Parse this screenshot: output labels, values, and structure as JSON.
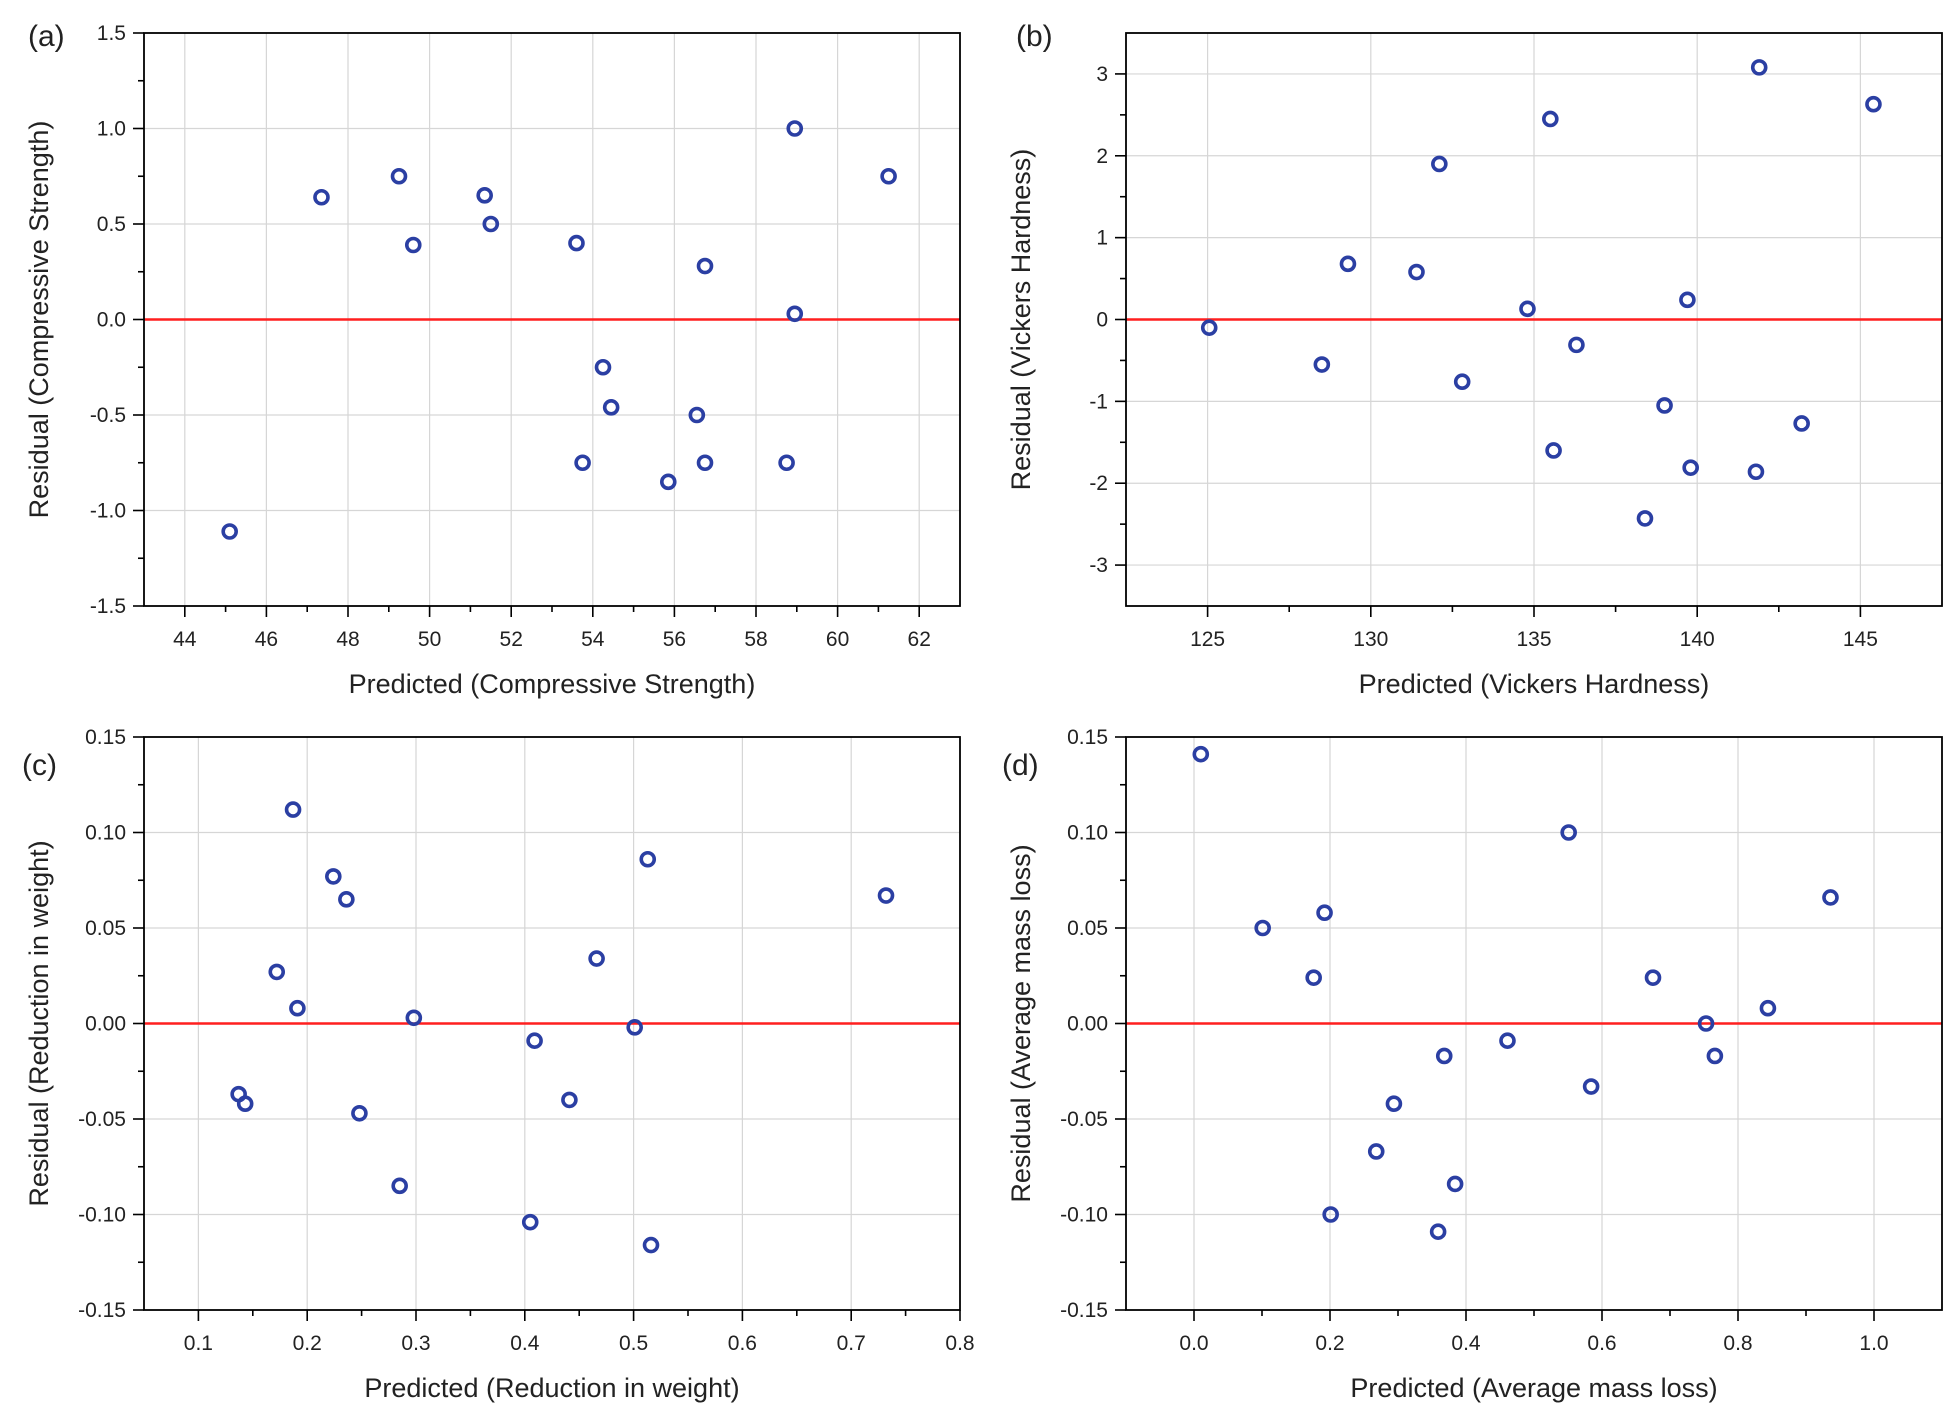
{
  "chart_data": [
    {
      "type": "scatter",
      "panel_label": "(a)",
      "xlabel": "Predicted (Compressive Strength)",
      "ylabel": "Residual (Compressive Strength)",
      "xlim": [
        43,
        63
      ],
      "ylim": [
        -1.5,
        1.5
      ],
      "xticks": [
        44,
        46,
        48,
        50,
        52,
        54,
        56,
        58,
        60,
        62
      ],
      "xtick_labels": [
        "44",
        "46",
        "48",
        "50",
        "52",
        "54",
        "56",
        "58",
        "60",
        "62"
      ],
      "yticks": [
        -1.5,
        -1.0,
        -0.5,
        0.0,
        0.5,
        1.0,
        1.5
      ],
      "ytick_labels": [
        "-1.5",
        "-1.0",
        "-0.5",
        "0.0",
        "0.5",
        "1.0",
        "1.5"
      ],
      "grid": true,
      "reference_line": {
        "y": 0,
        "color": "#ff1f1f"
      },
      "marker_color": "#2b3fa3",
      "x": [
        45.1,
        47.35,
        49.25,
        49.6,
        51.35,
        51.5,
        53.6,
        53.75,
        54.25,
        54.45,
        55.85,
        56.55,
        56.75,
        56.75,
        58.75,
        58.95,
        58.95,
        61.25
      ],
      "y": [
        -1.11,
        0.64,
        0.75,
        0.39,
        0.65,
        0.5,
        0.4,
        -0.75,
        -0.25,
        -0.46,
        -0.85,
        -0.5,
        0.28,
        -0.75,
        -0.75,
        1.0,
        0.03,
        0.75
      ]
    },
    {
      "type": "scatter",
      "panel_label": "(b)",
      "xlabel": "Predicted (Vickers Hardness)",
      "ylabel": "Residual (Vickers Hardness)",
      "xlim": [
        122.5,
        147.5
      ],
      "ylim": [
        -3.5,
        3.5
      ],
      "xticks": [
        125,
        130,
        135,
        140,
        145
      ],
      "xtick_labels": [
        "125",
        "130",
        "135",
        "140",
        "145"
      ],
      "yticks": [
        -3,
        -2,
        -1,
        0,
        1,
        2,
        3
      ],
      "ytick_labels": [
        "-3",
        "-2",
        "-1",
        "0",
        "1",
        "2",
        "3"
      ],
      "grid": true,
      "reference_line": {
        "y": 0,
        "color": "#ff1f1f"
      },
      "marker_color": "#2b3fa3",
      "x": [
        125.05,
        128.5,
        129.3,
        131.4,
        132.1,
        132.8,
        134.8,
        135.5,
        135.6,
        136.3,
        138.4,
        139.0,
        139.7,
        139.8,
        141.8,
        141.9,
        143.2,
        145.4
      ],
      "y": [
        -0.1,
        -0.55,
        0.68,
        0.58,
        1.9,
        -0.76,
        0.13,
        2.45,
        -1.6,
        -0.31,
        -2.43,
        -1.05,
        0.24,
        -1.81,
        -1.86,
        3.08,
        -1.27,
        2.63
      ]
    },
    {
      "type": "scatter",
      "panel_label": "(c)",
      "xlabel": "Predicted (Reduction in weight)",
      "ylabel": "Residual (Reduction in weight)",
      "xlim": [
        0.05,
        0.8
      ],
      "ylim": [
        -0.15,
        0.15
      ],
      "xticks": [
        0.1,
        0.2,
        0.3,
        0.4,
        0.5,
        0.6,
        0.7,
        0.8
      ],
      "xtick_labels": [
        "0.1",
        "0.2",
        "0.3",
        "0.4",
        "0.5",
        "0.6",
        "0.7",
        "0.8"
      ],
      "yticks": [
        -0.15,
        -0.1,
        -0.05,
        0.0,
        0.05,
        0.1,
        0.15
      ],
      "ytick_labels": [
        "-0.15",
        "-0.10",
        "-0.05",
        "0.00",
        "0.05",
        "0.10",
        "0.15"
      ],
      "grid": true,
      "reference_line": {
        "y": 0,
        "color": "#ff1f1f"
      },
      "marker_color": "#2b3fa3",
      "x": [
        0.137,
        0.143,
        0.172,
        0.187,
        0.191,
        0.224,
        0.236,
        0.248,
        0.285,
        0.298,
        0.405,
        0.409,
        0.441,
        0.466,
        0.501,
        0.513,
        0.516,
        0.732
      ],
      "y": [
        -0.037,
        -0.042,
        0.027,
        0.112,
        0.008,
        0.077,
        0.065,
        -0.047,
        -0.085,
        0.003,
        -0.104,
        -0.009,
        -0.04,
        0.034,
        -0.002,
        0.086,
        -0.116,
        0.067
      ]
    },
    {
      "type": "scatter",
      "panel_label": "(d)",
      "xlabel": "Predicted (Average mass loss)",
      "ylabel": "Residual (Average mass loss)",
      "xlim": [
        -0.1,
        1.1
      ],
      "ylim": [
        -0.15,
        0.15
      ],
      "xticks": [
        0.0,
        0.2,
        0.4,
        0.6,
        0.8,
        1.0
      ],
      "xtick_labels": [
        "0.0",
        "0.2",
        "0.4",
        "0.6",
        "0.8",
        "1.0"
      ],
      "yticks": [
        -0.15,
        -0.1,
        -0.05,
        0.0,
        0.05,
        0.1,
        0.15
      ],
      "ytick_labels": [
        "-0.15",
        "-0.10",
        "-0.05",
        "0.00",
        "0.05",
        "0.10",
        "0.15"
      ],
      "grid": true,
      "reference_line": {
        "y": 0,
        "color": "#ff1f1f"
      },
      "marker_color": "#2b3fa3",
      "x": [
        0.01,
        0.101,
        0.176,
        0.192,
        0.201,
        0.268,
        0.294,
        0.359,
        0.368,
        0.384,
        0.461,
        0.551,
        0.584,
        0.675,
        0.753,
        0.766,
        0.844,
        0.936
      ],
      "y": [
        0.141,
        0.05,
        0.024,
        0.058,
        -0.1,
        -0.067,
        -0.042,
        -0.109,
        -0.017,
        -0.084,
        -0.009,
        0.1,
        -0.033,
        0.024,
        0.0,
        -0.017,
        0.008,
        0.066
      ]
    }
  ]
}
